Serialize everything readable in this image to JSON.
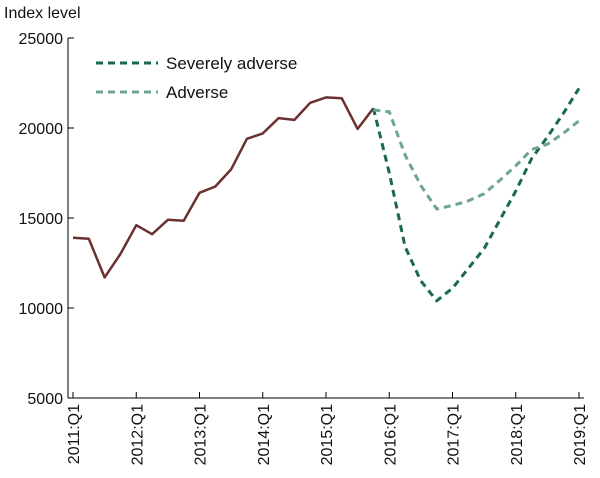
{
  "chart_data": {
    "type": "line",
    "ylabel": "Index level",
    "ylim": [
      5000,
      25000
    ],
    "y_ticks": [
      25000,
      20000,
      15000,
      10000,
      5000
    ],
    "x_ticks": [
      "2011:Q1",
      "2012:Q1",
      "2013:Q1",
      "2014:Q1",
      "2015:Q1",
      "2016:Q1",
      "2017:Q1",
      "2018:Q1",
      "2019:Q1"
    ],
    "grid": false,
    "legend": "top-left",
    "series": [
      {
        "key": "historical",
        "color": "#6b3030",
        "dash": "solid",
        "x": [
          "2011:Q1",
          "2011:Q2",
          "2011:Q3",
          "2011:Q4",
          "2012:Q1",
          "2012:Q2",
          "2012:Q3",
          "2012:Q4",
          "2013:Q1",
          "2013:Q2",
          "2013:Q3",
          "2013:Q4",
          "2014:Q1",
          "2014:Q2",
          "2014:Q3",
          "2014:Q4",
          "2015:Q1",
          "2015:Q2",
          "2015:Q3",
          "2015:Q4"
        ],
        "values": [
          13900,
          13850,
          11700,
          13000,
          14600,
          14100,
          14900,
          14850,
          16400,
          16750,
          17700,
          19400,
          19700,
          20550,
          20450,
          21400,
          21700,
          21650,
          19950,
          21100
        ]
      },
      {
        "key": "severely_adverse",
        "name": "Severely adverse",
        "color": "#1a6b4a",
        "dash": "dashed",
        "x": [
          "2015:Q4",
          "2016:Q1",
          "2016:Q2",
          "2016:Q3",
          "2016:Q4",
          "2017:Q1",
          "2017:Q2",
          "2017:Q3",
          "2017:Q4",
          "2018:Q1",
          "2018:Q2",
          "2018:Q3",
          "2018:Q4",
          "2019:Q1"
        ],
        "values": [
          21100,
          17500,
          13400,
          11500,
          10400,
          11100,
          12200,
          13300,
          14900,
          16500,
          18300,
          19500,
          20800,
          22200
        ]
      },
      {
        "key": "adverse",
        "name": "Adverse",
        "color": "#6fa58d",
        "dash": "dashed",
        "x": [
          "2015:Q4",
          "2016:Q1",
          "2016:Q2",
          "2016:Q3",
          "2016:Q4",
          "2017:Q1",
          "2017:Q2",
          "2017:Q3",
          "2017:Q4",
          "2018:Q1",
          "2018:Q2",
          "2018:Q3",
          "2018:Q4",
          "2019:Q1"
        ],
        "values": [
          21000,
          20900,
          18500,
          16800,
          15500,
          15700,
          15950,
          16350,
          17100,
          17900,
          18800,
          19100,
          19700,
          20400
        ]
      }
    ]
  }
}
